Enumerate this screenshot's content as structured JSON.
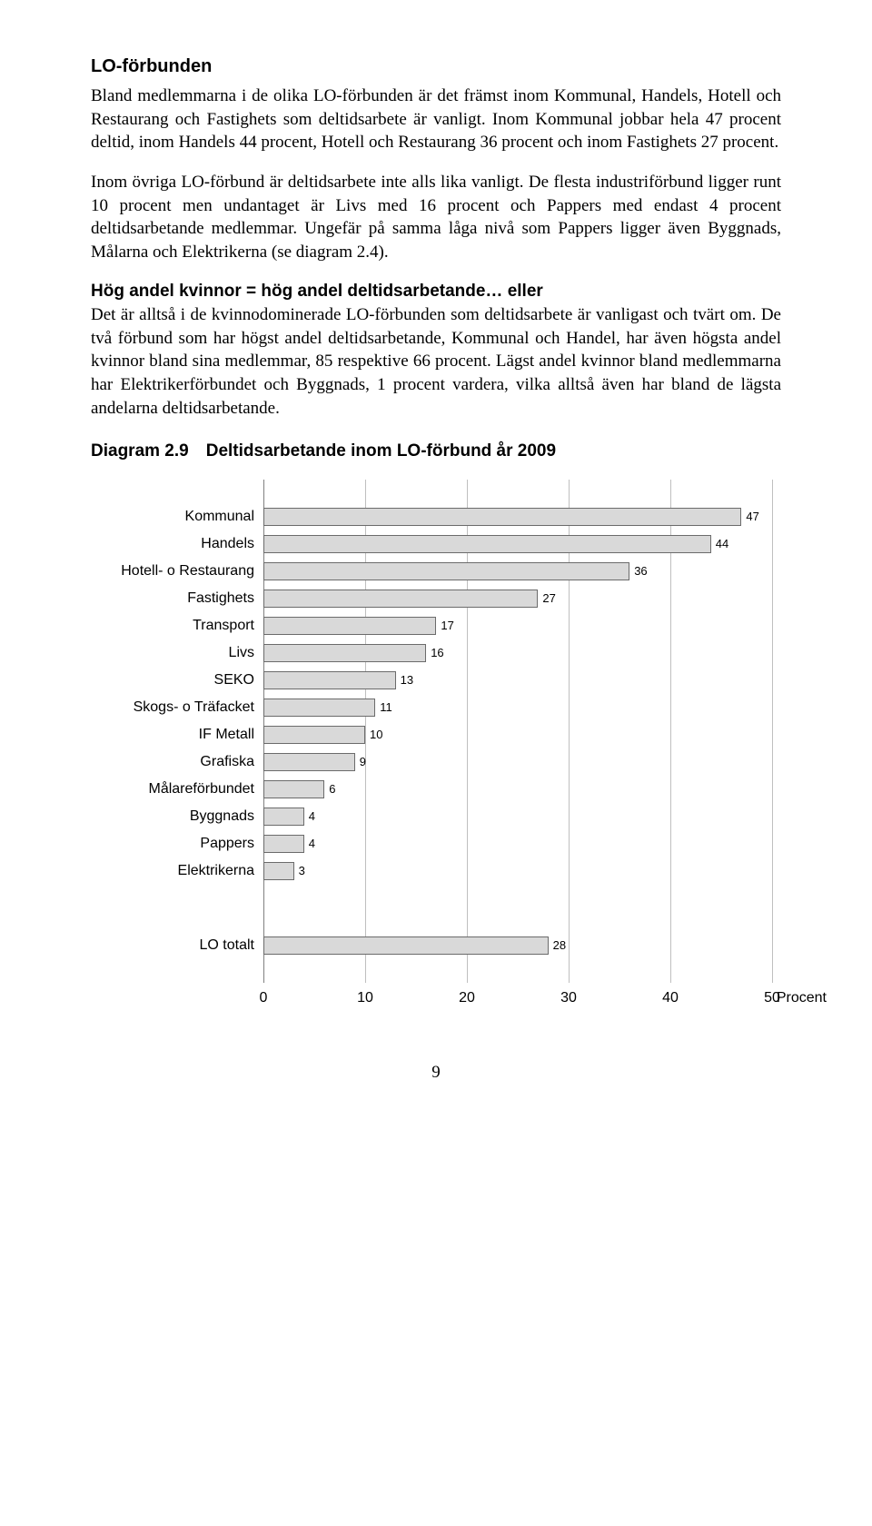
{
  "heading1": "LO-förbunden",
  "para1": "Bland medlemmarna i de olika LO-förbunden är det främst inom Kommunal, Handels, Hotell och Restaurang och Fastighets som deltidsarbete är vanligt. Inom Kommunal jobbar hela 47 procent deltid, inom Handels 44 procent, Hotell och Restaurang 36 procent och inom Fastighets 27 procent.",
  "para2": "Inom övriga LO-förbund är deltidsarbete inte alls lika vanligt. De flesta industriförbund ligger runt 10 procent men undantaget är Livs med 16 procent och Pappers med endast 4 procent deltidsarbetande medlemmar. Ungefär på samma låga nivå som Pappers ligger även Byggnads, Målarna och Elektrikerna (se diagram 2.4).",
  "subheading": "Hög andel kvinnor = hög andel deltidsarbetande… eller",
  "para3": "Det är alltså i de kvinnodominerade LO-förbunden som deltidsarbete är vanligast och tvärt om. De två förbund som har högst andel deltidsarbetande, Kommunal och Handel, har även högsta andel kvinnor bland sina medlemmar, 85 respektive 66 procent. Lägst andel kvinnor bland medlemmarna har Elektrikerförbundet och Byggnads, 1 procent vardera, vilka alltså även har bland de lägsta andelarna deltidsarbetande.",
  "chart": {
    "title": "Diagram 2.9 Deltidsarbetande inom LO-förbund år 2009",
    "type": "bar",
    "categories": [
      "Kommunal",
      "Handels",
      "Hotell- o Restaurang",
      "Fastighets",
      "Transport",
      "Livs",
      "SEKO",
      "Skogs- o Träfacket",
      "IF Metall",
      "Grafiska",
      "Målareförbundet",
      "Byggnads",
      "Pappers",
      "Elektrikerna"
    ],
    "values": [
      47,
      44,
      36,
      27,
      17,
      16,
      13,
      11,
      10,
      9,
      6,
      4,
      4,
      3
    ],
    "total_label": "LO totalt",
    "total_value": 28,
    "xmax": 50,
    "xticks": [
      0,
      10,
      20,
      30,
      40,
      50
    ],
    "axis_label": "Procent",
    "bar_fill": "#d9d9d9",
    "bar_border": "#6b6b6b",
    "grid_color": "#bfbfbf",
    "axis_color": "#808080",
    "background": "#ffffff",
    "label_fontsize": 16,
    "value_fontsize": 13
  },
  "page_number": "9"
}
